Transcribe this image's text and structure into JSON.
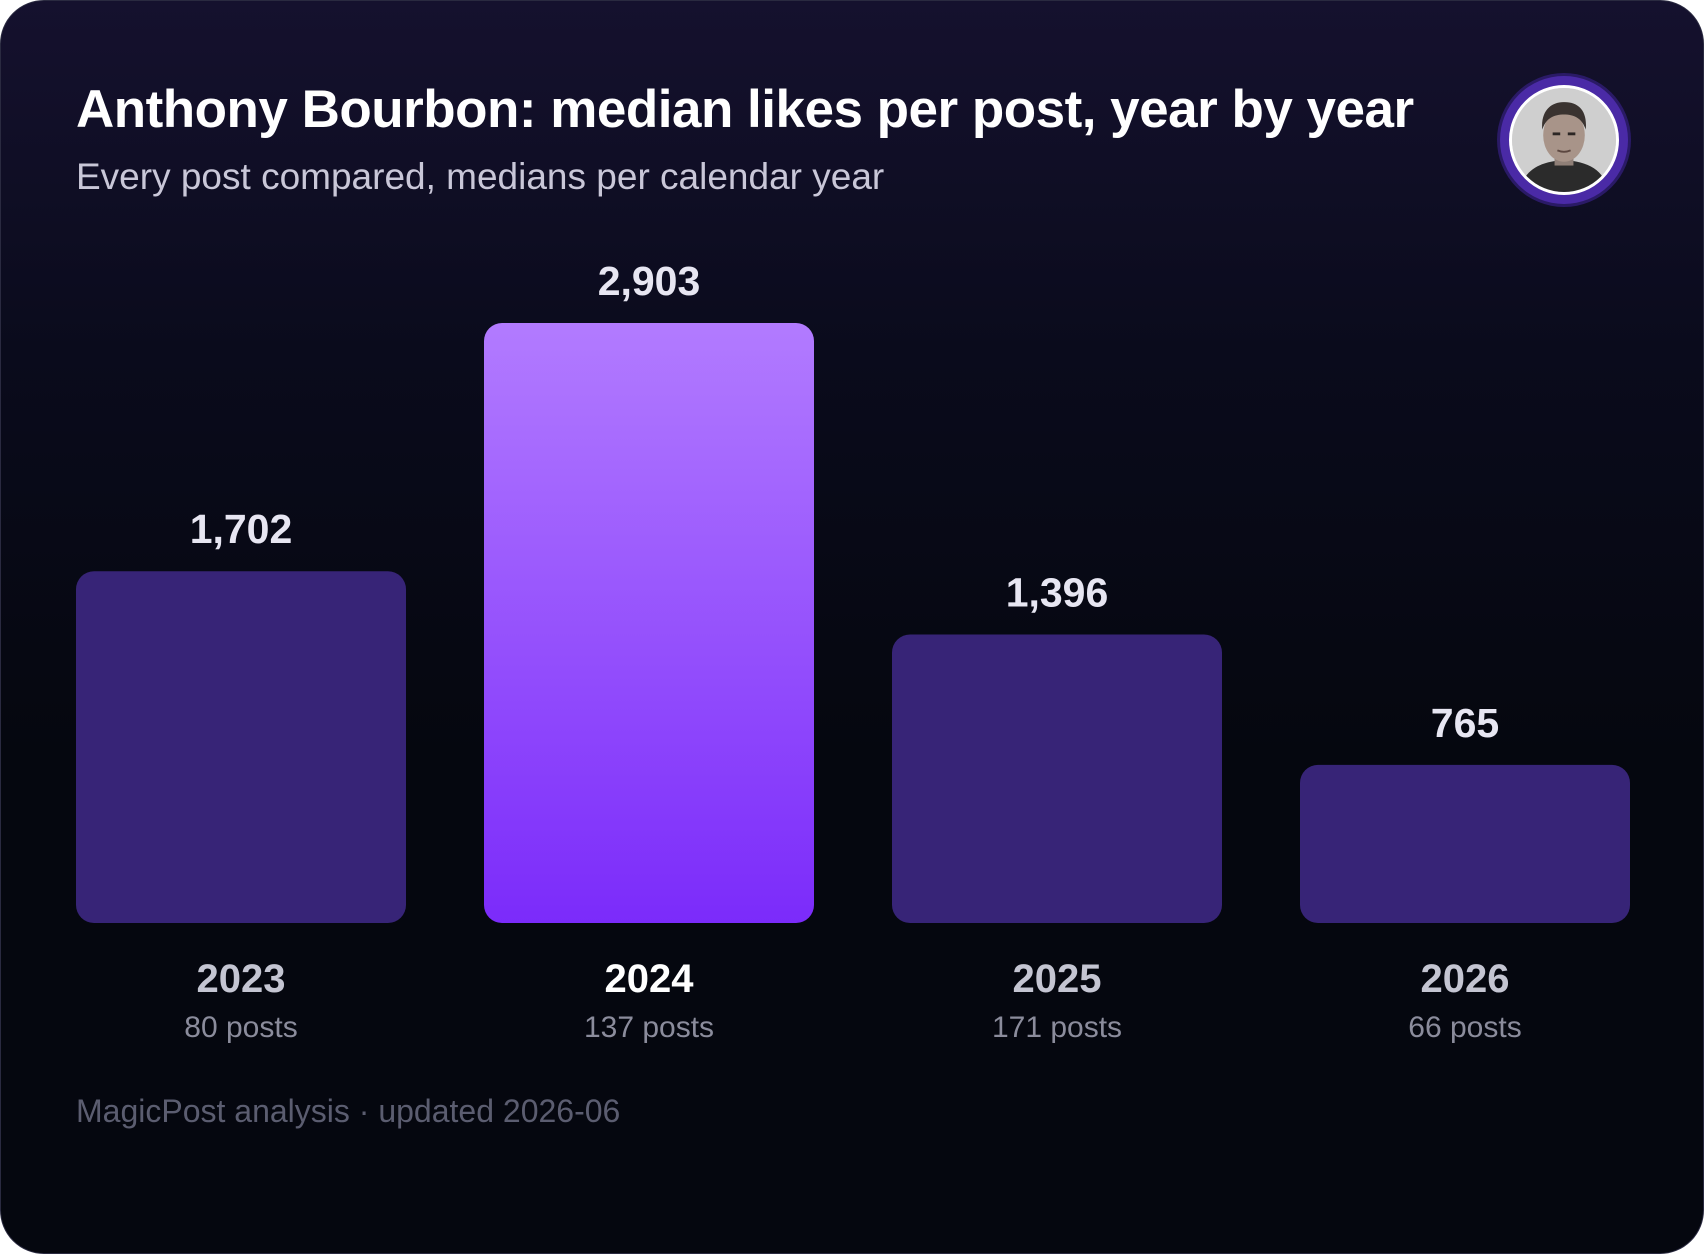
{
  "header": {
    "title": "Anthony Bourbon: median likes per post, year by year",
    "subtitle": "Every post compared, medians per calendar year"
  },
  "avatar_icon": "person-portrait-icon",
  "footer": {
    "source": "MagicPost analysis · updated 2026-06"
  },
  "colors": {
    "background": "#05070f",
    "bar": "#372477",
    "highlight_top": "#b27bff",
    "highlight_bottom": "#7b2bfa",
    "value_label": "#e7e6f2",
    "category_label": "#c4c5d2",
    "highlight_label": "#ffffff",
    "sublabel": "#8b8c9c"
  },
  "chart_data": {
    "type": "bar",
    "categories": [
      "2023",
      "2024",
      "2025",
      "2026"
    ],
    "values": [
      1702,
      2903,
      1396,
      765
    ],
    "value_labels": [
      "1,702",
      "2,903",
      "1,396",
      "765"
    ],
    "sublabels": [
      "80 posts",
      "137 posts",
      "171 posts",
      "66 posts"
    ],
    "highlight": "2024",
    "grid": false,
    "legend": "none"
  }
}
